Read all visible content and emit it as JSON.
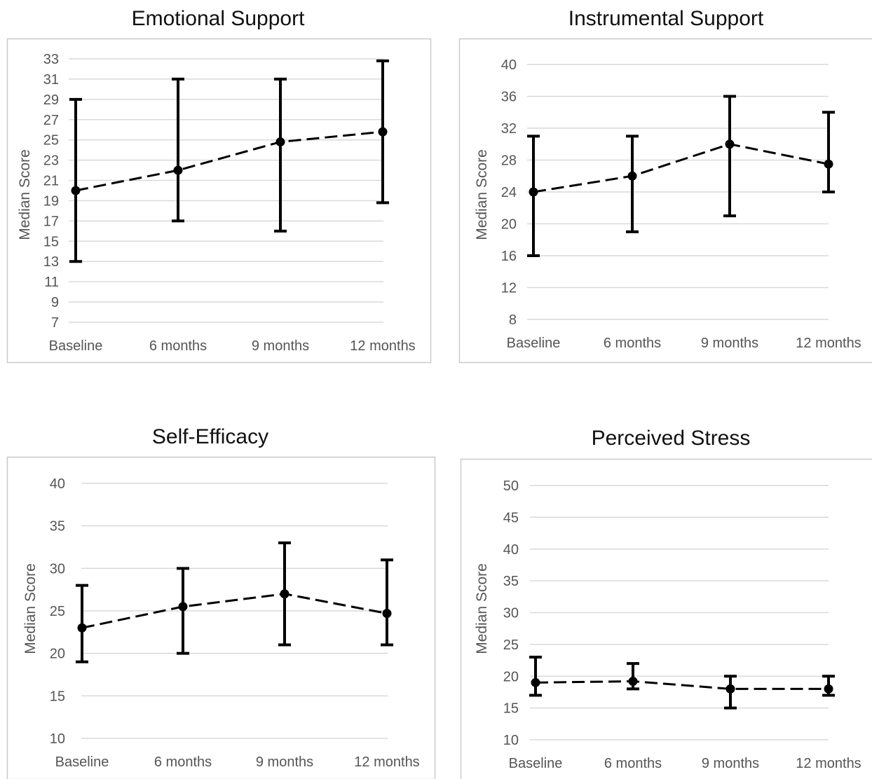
{
  "chart_data": [
    {
      "type": "line",
      "title": "Emotional Support",
      "ylabel": "Median Score",
      "xlabel": "",
      "categories": [
        "Baseline",
        "6 months",
        "9 months",
        "12 months"
      ],
      "values": [
        20,
        22,
        24.8,
        25.8
      ],
      "error_low": [
        13,
        17,
        16,
        18.8
      ],
      "error_high": [
        29,
        31,
        31,
        32.8
      ],
      "ylim": [
        7,
        33
      ],
      "yticks": [
        7,
        9,
        11,
        13,
        15,
        17,
        19,
        21,
        23,
        25,
        27,
        29,
        31,
        33
      ],
      "grid": true,
      "line_style": "dashed"
    },
    {
      "type": "line",
      "title": "Instrumental Support",
      "ylabel": "Median Score",
      "xlabel": "",
      "categories": [
        "Baseline",
        "6 months",
        "9 months",
        "12 months"
      ],
      "values": [
        24,
        26,
        30,
        27.5
      ],
      "error_low": [
        16,
        19,
        21,
        24
      ],
      "error_high": [
        31,
        31,
        36,
        34
      ],
      "ylim": [
        8,
        40
      ],
      "yticks": [
        8,
        12,
        16,
        20,
        24,
        28,
        32,
        36,
        40
      ],
      "grid": true,
      "line_style": "dashed"
    },
    {
      "type": "line",
      "title": "Self-Efficacy",
      "ylabel": "Median Score",
      "xlabel": "",
      "categories": [
        "Baseline",
        "6 months",
        "9 months",
        "12 months"
      ],
      "values": [
        23,
        25.5,
        27,
        24.7
      ],
      "error_low": [
        19,
        20,
        21,
        21
      ],
      "error_high": [
        28,
        30,
        33,
        31
      ],
      "ylim": [
        10,
        40
      ],
      "yticks": [
        10,
        15,
        20,
        25,
        30,
        35,
        40
      ],
      "grid": true,
      "line_style": "dashed"
    },
    {
      "type": "line",
      "title": "Perceived Stress",
      "ylabel": "Median Score",
      "xlabel": "",
      "categories": [
        "Baseline",
        "6 months",
        "9 months",
        "12 months"
      ],
      "values": [
        19,
        19.2,
        18,
        18
      ],
      "error_low": [
        17,
        18,
        15,
        17
      ],
      "error_high": [
        23,
        22,
        20,
        20
      ],
      "ylim": [
        10,
        50
      ],
      "yticks": [
        10,
        15,
        20,
        25,
        30,
        35,
        40,
        45,
        50
      ],
      "grid": true,
      "line_style": "dashed"
    }
  ]
}
